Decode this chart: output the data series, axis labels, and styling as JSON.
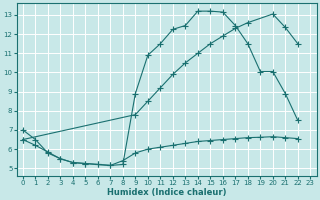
{
  "xlabel": "Humidex (Indice chaleur)",
  "bg_color": "#c8e8e8",
  "grid_color": "#ffffff",
  "line_color": "#1a7070",
  "xlim": [
    -0.5,
    23.5
  ],
  "ylim": [
    4.6,
    13.6
  ],
  "xticks": [
    0,
    1,
    2,
    3,
    4,
    5,
    6,
    7,
    8,
    9,
    10,
    11,
    12,
    13,
    14,
    15,
    16,
    17,
    18,
    19,
    20,
    21,
    22,
    23
  ],
  "yticks": [
    5,
    6,
    7,
    8,
    9,
    10,
    11,
    12,
    13
  ],
  "curve1_x": [
    0,
    1,
    2,
    3,
    4,
    5,
    6,
    7,
    8,
    9,
    10,
    11,
    12,
    13,
    14,
    15,
    16,
    17,
    18,
    19,
    20,
    21,
    22
  ],
  "curve1_y": [
    7.0,
    6.5,
    5.8,
    5.5,
    5.3,
    5.25,
    5.2,
    5.15,
    5.2,
    8.9,
    10.9,
    11.5,
    12.25,
    12.45,
    13.2,
    13.2,
    13.15,
    12.45,
    11.5,
    10.05,
    10.05,
    8.9,
    7.5
  ],
  "curve2_x": [
    0,
    9,
    10,
    11,
    12,
    13,
    14,
    15,
    16,
    17,
    18,
    20,
    21,
    22
  ],
  "curve2_y": [
    6.5,
    7.8,
    8.5,
    9.2,
    9.9,
    10.5,
    11.0,
    11.5,
    11.9,
    12.3,
    12.6,
    13.05,
    12.35,
    11.5
  ],
  "curve3_x": [
    0,
    1,
    2,
    3,
    4,
    5,
    6,
    7,
    8,
    9,
    10,
    11,
    12,
    13,
    14,
    15,
    16,
    17,
    18,
    19,
    20,
    21,
    22
  ],
  "curve3_y": [
    6.5,
    6.2,
    5.85,
    5.5,
    5.3,
    5.25,
    5.2,
    5.15,
    5.4,
    5.8,
    6.0,
    6.1,
    6.2,
    6.3,
    6.4,
    6.45,
    6.5,
    6.55,
    6.6,
    6.62,
    6.65,
    6.6,
    6.55
  ]
}
